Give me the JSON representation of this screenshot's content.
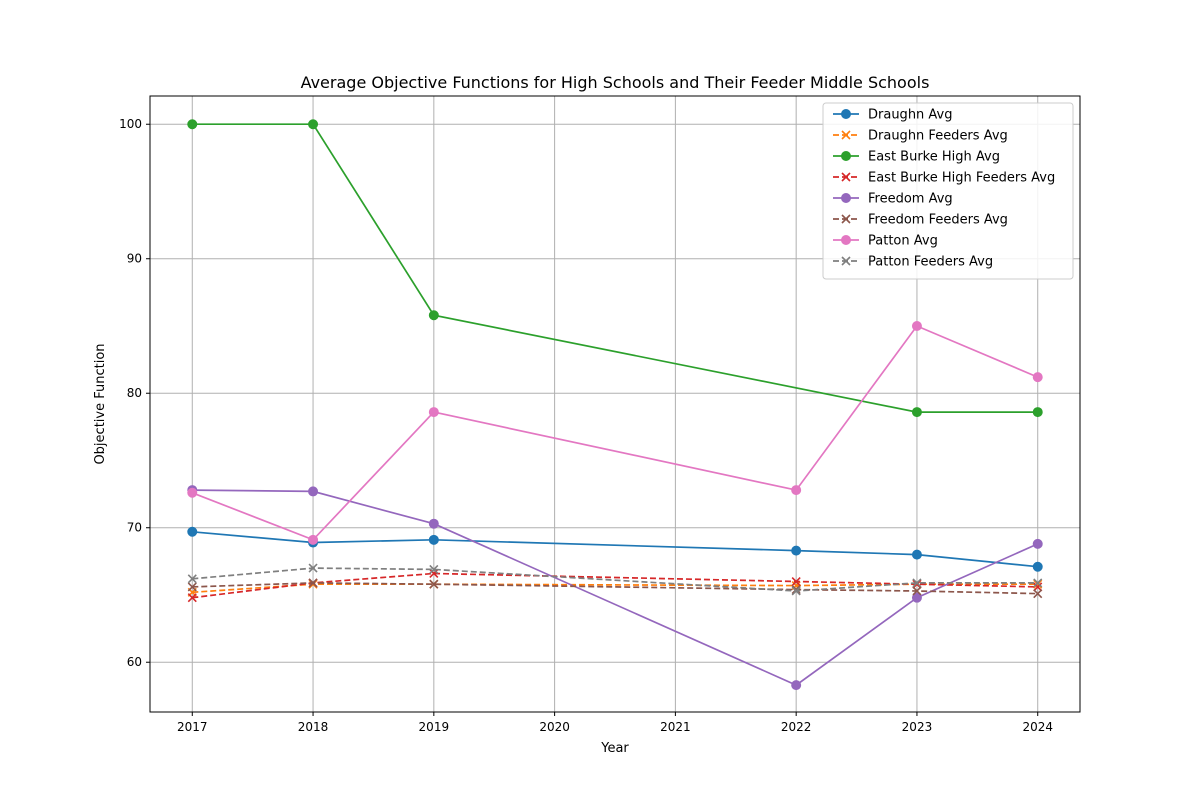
{
  "chart_data": {
    "type": "line",
    "title": "Average Objective Functions for High Schools and Their Feeder Middle Schools",
    "xlabel": "Year",
    "ylabel": "Objective Function",
    "xlim": [
      2016.65,
      2024.35
    ],
    "ylim": [
      56.3,
      102.1
    ],
    "xticks": [
      2017,
      2018,
      2019,
      2020,
      2021,
      2022,
      2023,
      2024
    ],
    "yticks": [
      60,
      70,
      80,
      90,
      100
    ],
    "grid": true,
    "legend_position": "top-right",
    "series": [
      {
        "name": "Draughn Avg",
        "color": "#1f77b4",
        "marker": "o",
        "linestyle": "solid",
        "x": [
          2017,
          2018,
          2019,
          2022,
          2023,
          2024
        ],
        "y": [
          69.7,
          68.9,
          69.1,
          68.3,
          68.0,
          67.1
        ]
      },
      {
        "name": "Draughn Feeders Avg",
        "color": "#ff7f0e",
        "marker": "x",
        "linestyle": "dashed",
        "x": [
          2017,
          2018,
          2019,
          2022,
          2023,
          2024
        ],
        "y": [
          65.2,
          65.8,
          65.8,
          65.7,
          65.8,
          65.8
        ]
      },
      {
        "name": "East Burke High Avg",
        "color": "#2ca02c",
        "marker": "o",
        "linestyle": "solid",
        "x": [
          2017,
          2018,
          2019,
          2023,
          2024
        ],
        "y": [
          100.0,
          100.0,
          85.8,
          78.6,
          78.6
        ]
      },
      {
        "name": "East Burke High Feeders Avg",
        "color": "#d62728",
        "marker": "x",
        "linestyle": "dashed",
        "x": [
          2017,
          2018,
          2019,
          2022,
          2023,
          2024
        ],
        "y": [
          64.8,
          65.9,
          66.6,
          66.0,
          65.8,
          65.6
        ]
      },
      {
        "name": "Freedom Avg",
        "color": "#9467bd",
        "marker": "o",
        "linestyle": "solid",
        "x": [
          2017,
          2018,
          2019,
          2022,
          2023,
          2024
        ],
        "y": [
          72.8,
          72.7,
          70.3,
          58.3,
          64.8,
          68.8
        ]
      },
      {
        "name": "Freedom Feeders Avg",
        "color": "#8c564b",
        "marker": "x",
        "linestyle": "dashed",
        "x": [
          2017,
          2018,
          2019,
          2022,
          2023,
          2024
        ],
        "y": [
          65.6,
          65.9,
          65.8,
          65.4,
          65.3,
          65.1
        ]
      },
      {
        "name": "Patton Avg",
        "color": "#e377c2",
        "marker": "o",
        "linestyle": "solid",
        "x": [
          2017,
          2018,
          2019,
          2022,
          2023,
          2024
        ],
        "y": [
          72.6,
          69.1,
          78.6,
          72.8,
          85.0,
          81.2
        ]
      },
      {
        "name": "Patton Feeders Avg",
        "color": "#7f7f7f",
        "marker": "x",
        "linestyle": "dashed",
        "x": [
          2017,
          2018,
          2019,
          2022,
          2023,
          2024
        ],
        "y": [
          66.2,
          67.0,
          66.9,
          65.3,
          65.9,
          65.9
        ]
      }
    ]
  }
}
